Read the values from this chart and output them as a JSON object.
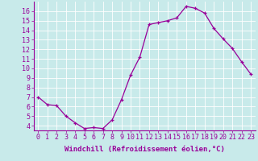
{
  "x": [
    0,
    1,
    2,
    3,
    4,
    5,
    6,
    7,
    8,
    9,
    10,
    11,
    12,
    13,
    14,
    15,
    16,
    17,
    18,
    19,
    20,
    21,
    22,
    23
  ],
  "y": [
    7.0,
    6.2,
    6.1,
    5.0,
    4.3,
    3.7,
    3.8,
    3.7,
    4.6,
    6.7,
    9.3,
    11.2,
    14.6,
    14.8,
    15.0,
    15.3,
    16.5,
    16.3,
    15.8,
    14.2,
    13.1,
    12.1,
    10.7,
    9.4
  ],
  "line_color": "#990099",
  "bg_color": "#c8eaea",
  "grid_color": "#b0dada",
  "xlabel": "Windchill (Refroidissement éolien,°C)",
  "ylim": [
    3.5,
    17.0
  ],
  "xlim": [
    -0.5,
    23.5
  ],
  "yticks": [
    4,
    5,
    6,
    7,
    8,
    9,
    10,
    11,
    12,
    13,
    14,
    15,
    16
  ],
  "xticks": [
    0,
    1,
    2,
    3,
    4,
    5,
    6,
    7,
    8,
    9,
    10,
    11,
    12,
    13,
    14,
    15,
    16,
    17,
    18,
    19,
    20,
    21,
    22,
    23
  ],
  "xlabel_fontsize": 6.5,
  "tick_fontsize": 6.0,
  "marker": "+",
  "markersize": 3.5,
  "linewidth": 0.9
}
